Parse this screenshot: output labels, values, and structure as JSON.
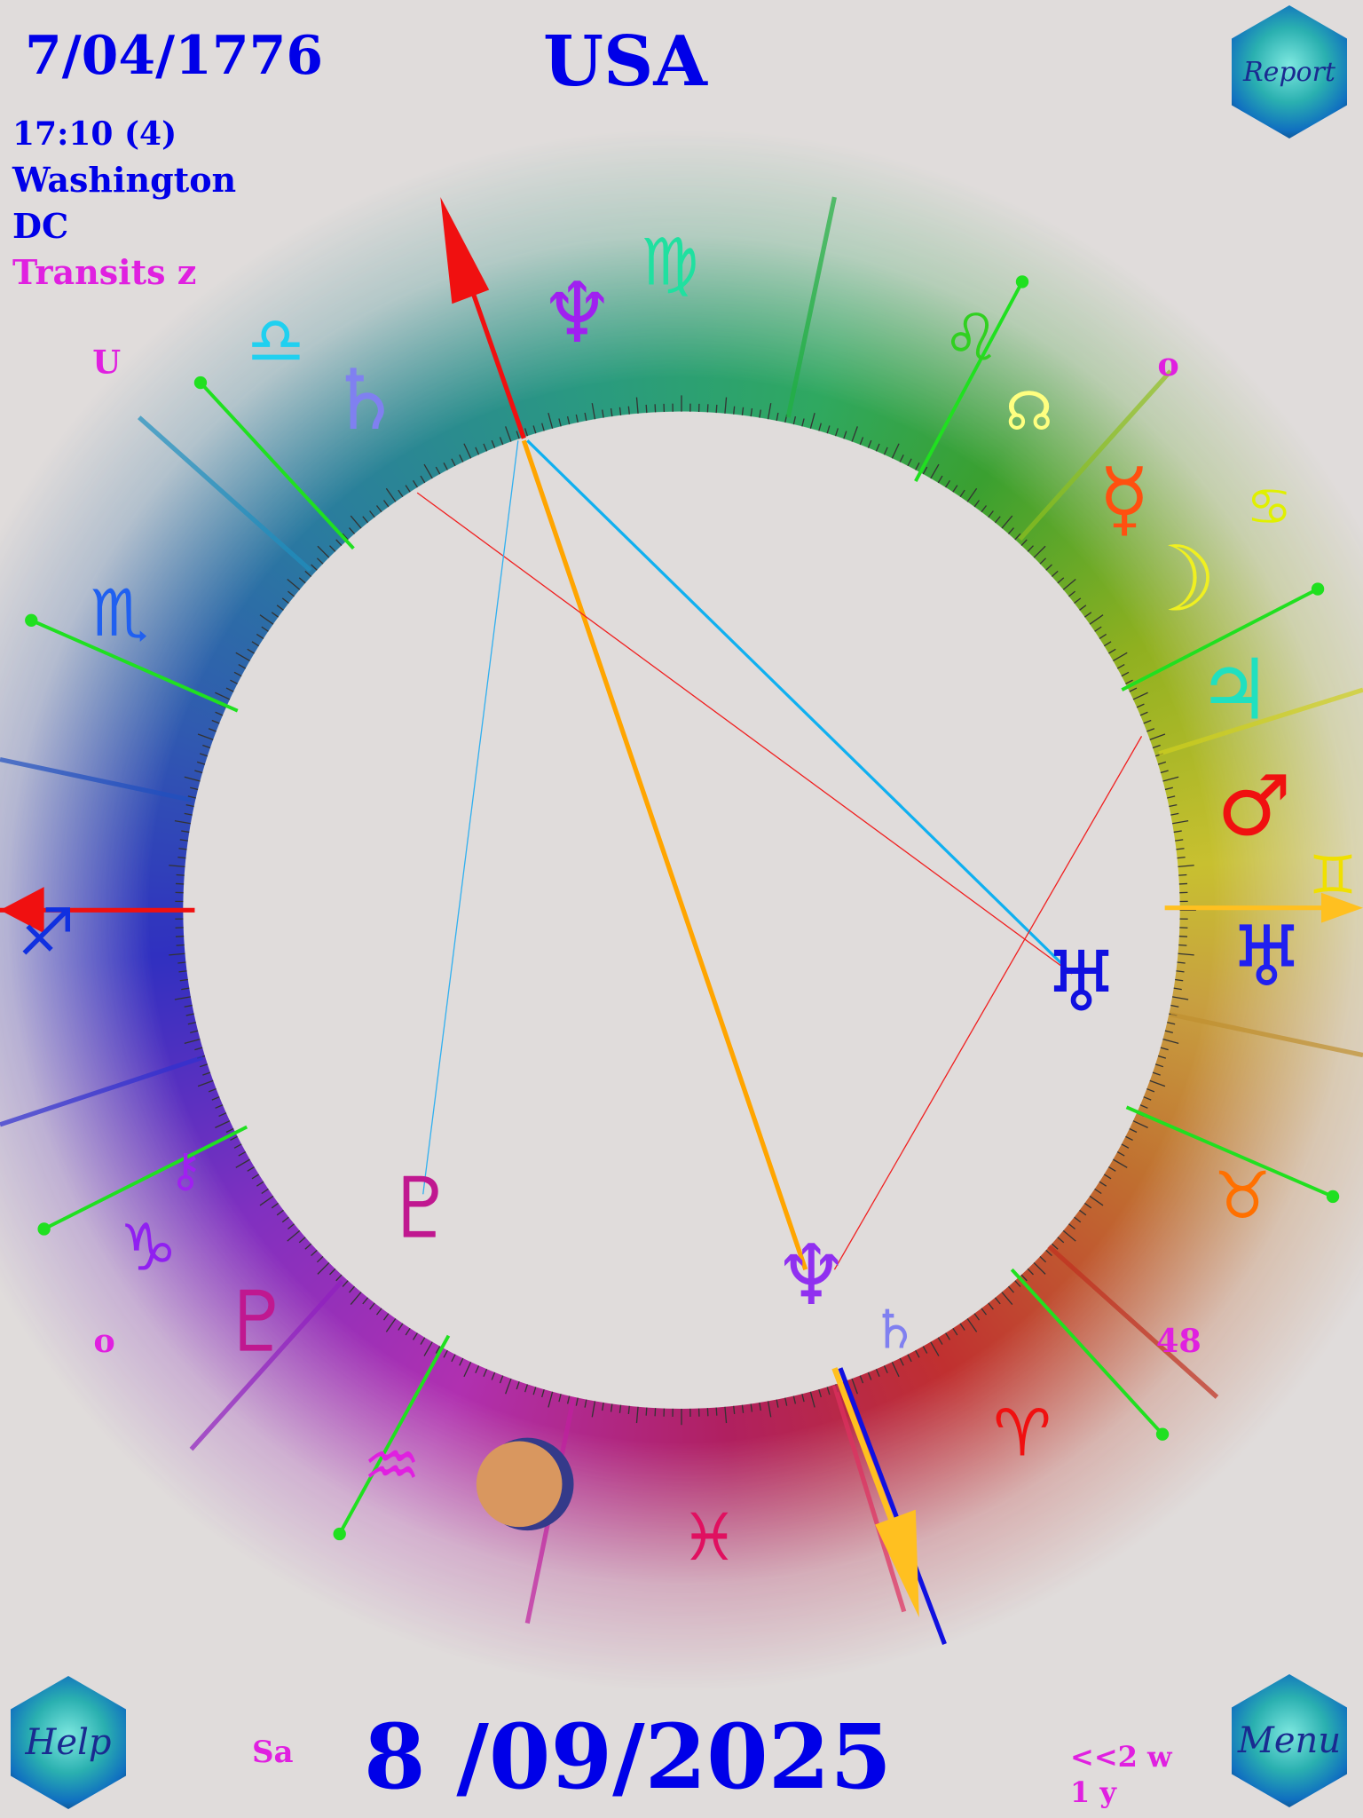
{
  "header": {
    "natal_date": "7/04/1776",
    "title": "USA",
    "time": "17:10 (4)",
    "place_line1": "Washington",
    "place_line2": "DC",
    "mode": "Transits z"
  },
  "buttons": {
    "report": "Report",
    "help": "Help",
    "menu": "Menu"
  },
  "footer": {
    "weekday": "Sa",
    "transit_date": "8 /09/2025",
    "step": "<<2 w",
    "step2": "1 y"
  },
  "house_labels": [
    "U",
    "o",
    "o",
    "48"
  ],
  "signs": [
    {
      "name": "virgo",
      "glyph": "♍",
      "color": "#20e0a0"
    },
    {
      "name": "leo",
      "glyph": "♌",
      "color": "#30d020"
    },
    {
      "name": "cancer",
      "glyph": "♋",
      "color": "#e0f000"
    },
    {
      "name": "gemini",
      "glyph": "♊",
      "color": "#f0e000"
    },
    {
      "name": "taurus",
      "glyph": "♉",
      "color": "#ff7000"
    },
    {
      "name": "aries",
      "glyph": "♈",
      "color": "#f01010"
    },
    {
      "name": "pisces",
      "glyph": "♓",
      "color": "#e01060"
    },
    {
      "name": "aquarius",
      "glyph": "♒",
      "color": "#e020e0"
    },
    {
      "name": "capricorn",
      "glyph": "♑",
      "color": "#9020f0"
    },
    {
      "name": "sagittarius",
      "glyph": "♐",
      "color": "#1030e0"
    },
    {
      "name": "scorpio",
      "glyph": "♏",
      "color": "#2060f0"
    },
    {
      "name": "libra",
      "glyph": "♎",
      "color": "#20d0f0"
    }
  ],
  "planets": [
    {
      "name": "neptune",
      "glyph": "♆",
      "color": "#a020f0"
    },
    {
      "name": "saturn",
      "glyph": "♄",
      "color": "#8080f0"
    },
    {
      "name": "north-node",
      "glyph": "☊",
      "color": "#ffff80"
    },
    {
      "name": "mercury",
      "glyph": "☿",
      "color": "#ff5010"
    },
    {
      "name": "moon",
      "glyph": "☽",
      "color": "#f0f020"
    },
    {
      "name": "jupiter",
      "glyph": "♃",
      "color": "#20e0c0"
    },
    {
      "name": "mars",
      "glyph": "♂",
      "color": "#f01010"
    },
    {
      "name": "uranus",
      "glyph": "♅",
      "color": "#2020f0"
    },
    {
      "name": "pluto",
      "glyph": "♇",
      "color": "#c01890"
    },
    {
      "name": "transit-uranus",
      "glyph": "♅",
      "color": "#1010e0"
    },
    {
      "name": "transit-pluto",
      "glyph": "♇",
      "color": "#c01890"
    },
    {
      "name": "transit-neptune",
      "glyph": "♆",
      "color": "#9030f0"
    },
    {
      "name": "transit-saturn",
      "glyph": "♄",
      "color": "#8080f0"
    },
    {
      "name": "chiron",
      "glyph": "⚷",
      "color": "#a020f0"
    }
  ]
}
